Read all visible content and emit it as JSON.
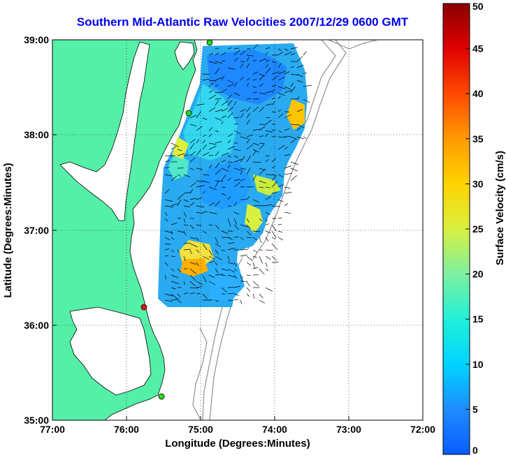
{
  "title": "Southern Mid-Atlantic Raw Velocities 2007/12/29 0600 GMT",
  "xlabel": "Longitude (Degrees:Minutes)",
  "ylabel": "Latitude (Degrees:Minutes)",
  "x_ticks": [
    "77:00",
    "76:00",
    "75:00",
    "74:00",
    "73:00",
    "72:00"
  ],
  "y_ticks": [
    "39:00",
    "38:00",
    "37:00",
    "36:00",
    "35:00"
  ],
  "colorbar": {
    "label": "Surface Velocity (cm/s)",
    "ticks": [
      "0",
      "5",
      "10",
      "15",
      "20",
      "25",
      "30",
      "35",
      "40",
      "45",
      "50"
    ],
    "range": [
      0,
      50
    ]
  },
  "colors": {
    "land": "#55f0a8",
    "title": "#0000ee",
    "bathymetry": "#909090",
    "station_green": "#22dd22",
    "station_red": "#ee1111"
  },
  "stations": [
    {
      "color": "green",
      "lon": -74.88,
      "lat": 39.0
    },
    {
      "color": "green",
      "lon": -75.16,
      "lat": 38.22
    },
    {
      "color": "red",
      "lon": -75.73,
      "lat": 36.19
    },
    {
      "color": "green",
      "lon": -75.5,
      "lat": 35.25
    }
  ]
}
